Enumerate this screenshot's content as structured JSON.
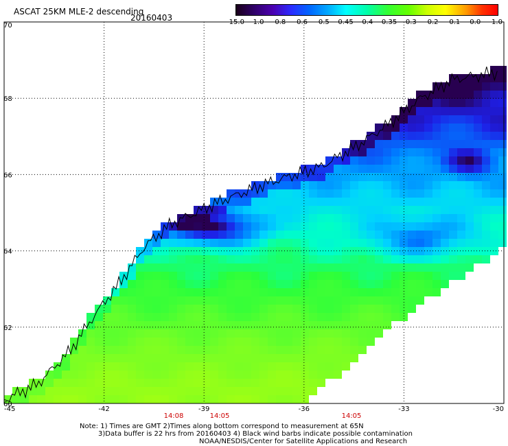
{
  "header": {
    "title": "ASCAT 25KM MLE-2 descending",
    "date": "20160403"
  },
  "colorbar": {
    "labels": [
      "-15.0",
      "-1.0",
      "-0.8",
      "-0.6",
      "-0.5",
      "-0.45",
      "-0.4",
      "-0.35",
      "-0.3",
      "-0.2",
      "-0.1",
      "0.0",
      "1.0"
    ]
  },
  "axes": {
    "lat_labels": [
      "70",
      "68",
      "66",
      "64",
      "62",
      "60"
    ],
    "lon_labels": [
      "-45",
      "-42",
      "-39",
      "-36",
      "-33",
      "-30"
    ]
  },
  "times": [
    "14:08",
    "14:05",
    "14:05"
  ],
  "notes": {
    "line1": "Note: 1) Times are GMT 2)Times along bottom correspond to measurement at 65N",
    "line2": "3)Data buffer is 22 hrs from 20160403 4) Black wind barbs indicate possible contamination",
    "line3": "NOAA/NESDIS/Center for Satellite Applications and Research"
  },
  "colors": {
    "time_color": "#cc0000",
    "grid_color": "#000000",
    "coast_color": "#000000"
  }
}
